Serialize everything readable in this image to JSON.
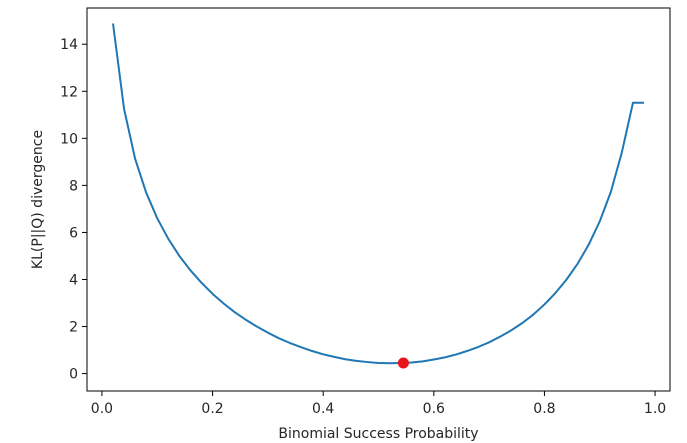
{
  "chart_data": {
    "type": "line",
    "xlabel": "Binomial Success Probability",
    "ylabel": "KL(P||Q) divergence",
    "xlim": [
      -0.027,
      1.027
    ],
    "ylim": [
      -0.74,
      15.54
    ],
    "xticks": [
      0.0,
      0.2,
      0.4,
      0.6,
      0.8,
      1.0
    ],
    "xtick_labels": [
      "0.0",
      "0.2",
      "0.4",
      "0.6",
      "0.8",
      "1.0"
    ],
    "yticks": [
      0,
      2,
      4,
      6,
      8,
      10,
      12,
      14
    ],
    "ytick_labels": [
      "0",
      "2",
      "4",
      "6",
      "8",
      "10",
      "12",
      "14"
    ],
    "grid": false,
    "series": [
      {
        "color": "#1f77b4",
        "x": [
          0.02,
          0.04,
          0.06,
          0.08,
          0.1,
          0.12,
          0.14,
          0.16,
          0.18,
          0.2,
          0.22,
          0.24,
          0.26,
          0.28,
          0.3,
          0.32,
          0.34,
          0.36,
          0.38,
          0.4,
          0.42,
          0.44,
          0.46,
          0.48,
          0.5,
          0.52,
          0.54,
          0.56,
          0.58,
          0.6,
          0.62,
          0.64,
          0.66,
          0.68,
          0.7,
          0.72,
          0.74,
          0.76,
          0.78,
          0.8,
          0.82,
          0.84,
          0.86,
          0.88,
          0.9,
          0.92,
          0.94,
          0.96,
          0.98
        ],
        "y": [
          14.88,
          11.25,
          9.13,
          7.69,
          6.6,
          5.73,
          5.0,
          4.39,
          3.86,
          3.39,
          2.98,
          2.61,
          2.29,
          2.0,
          1.74,
          1.5,
          1.3,
          1.12,
          0.96,
          0.82,
          0.71,
          0.61,
          0.54,
          0.49,
          0.45,
          0.44,
          0.45,
          0.47,
          0.52,
          0.6,
          0.69,
          0.81,
          0.96,
          1.13,
          1.33,
          1.57,
          1.84,
          2.15,
          2.51,
          2.94,
          3.43,
          4.0,
          4.67,
          5.48,
          6.47,
          7.72,
          9.41,
          11.51,
          11.51
        ]
      }
    ],
    "marker": {
      "x": 0.545,
      "y": 0.45,
      "color": "#e8161b"
    }
  }
}
